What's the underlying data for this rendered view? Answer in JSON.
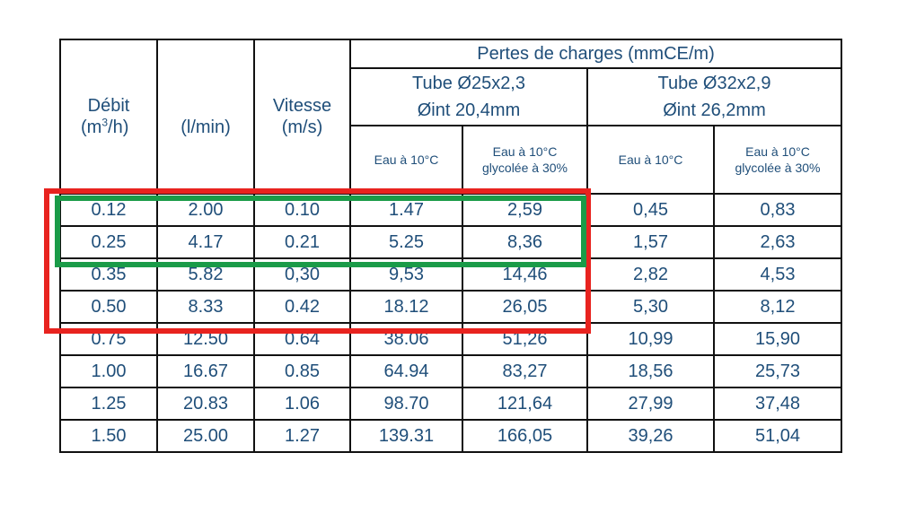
{
  "table": {
    "header": {
      "debit": "Débit",
      "debit_unit_m3h_prefix": "(m",
      "debit_unit_m3h_sup": "3",
      "debit_unit_m3h_suffix": "/h)",
      "debit_unit_lmin": "(l/min)",
      "vitesse": "Vitesse",
      "vitesse_unit": "(m/s)",
      "pertes": "Pertes de charges (mmCE/m)",
      "tube1_line1": "Tube Ø25x2,3",
      "tube1_line2": "Øint 20,4mm",
      "tube2_line1": "Tube Ø32x2,9",
      "tube2_line2": "Øint 26,2mm",
      "eau": "Eau à 10°C",
      "eau_glycol_line1": "Eau à 10°C",
      "eau_glycol_line2": "glycolée à  30%"
    },
    "rows": [
      [
        "0.12",
        "2.00",
        "0.10",
        "1.47",
        "2,59",
        "0,45",
        "0,83"
      ],
      [
        "0.25",
        "4.17",
        "0.21",
        "5.25",
        "8,36",
        "1,57",
        "2,63"
      ],
      [
        "0.35",
        "5.82",
        "0,30",
        "9,53",
        "14,46",
        "2,82",
        "4,53"
      ],
      [
        "0.50",
        "8.33",
        "0.42",
        "18.12",
        "26,05",
        "5,30",
        "8,12"
      ],
      [
        "0.75",
        "12.50",
        "0.64",
        "38.06",
        "51,26",
        "10,99",
        "15,90"
      ],
      [
        "1.00",
        "16.67",
        "0.85",
        "64.94",
        "83,27",
        "18,56",
        "25,73"
      ],
      [
        "1.25",
        "20.83",
        "1.06",
        "98.70",
        "121,64",
        "27,99",
        "37,48"
      ],
      [
        "1.50",
        "25.00",
        "1.27",
        "139.31",
        "166,05",
        "39,26",
        "51,04"
      ]
    ]
  },
  "colors": {
    "text": "#1f4e79",
    "red_highlight": "#e8231f",
    "green_highlight": "#1a9b48"
  }
}
